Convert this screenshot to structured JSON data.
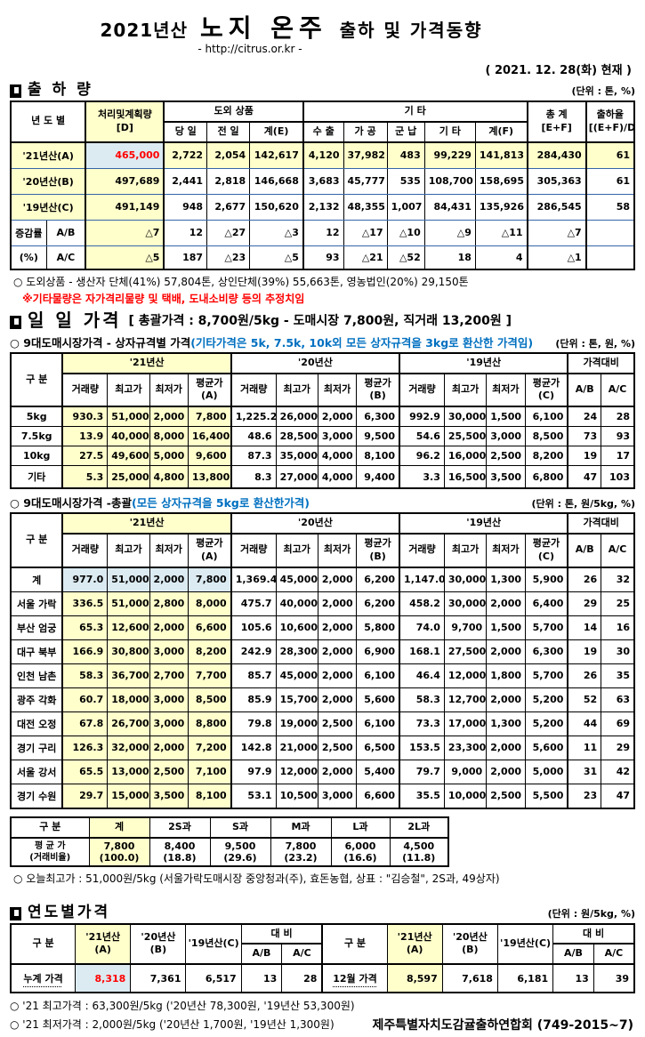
{
  "header": {
    "year": "2021년산",
    "product": "노지 온주",
    "subtitle": "출하 및 가격동향",
    "url": "- http://citrus.or.kr -",
    "date": "( 2021. 12. 28(화) 현재 )"
  },
  "shipment": {
    "title": "출 하 량",
    "unit": "(단위 : 톤, %)",
    "head": {
      "year_col": "년 도 별",
      "plan": "처리및계획량\n[D]",
      "island_goods": "도외 상품",
      "etc": "기      타",
      "total": "총  계\n[E+F]",
      "rate": "출하율\n[(E+F)/D]",
      "sub": [
        "당 일",
        "전 일",
        "계(E)",
        "수 출",
        "가 공",
        "군 납",
        "기 타",
        "계(F)"
      ]
    },
    "rows": [
      [
        {
          "t": "'21년산(A)",
          "c": "lab y",
          "cs": 2
        },
        {
          "t": "465,000",
          "c": "b r"
        },
        {
          "t": "2,722",
          "c": "y"
        },
        {
          "t": "2,054",
          "c": "y"
        },
        {
          "t": "142,617",
          "c": "y"
        },
        {
          "t": "4,120",
          "c": "y"
        },
        {
          "t": "37,982",
          "c": "y"
        },
        {
          "t": "483",
          "c": "y"
        },
        {
          "t": "99,229",
          "c": "y"
        },
        {
          "t": "141,813",
          "c": "y"
        },
        {
          "t": "284,430",
          "c": "y"
        },
        {
          "t": "61",
          "c": "y"
        }
      ],
      [
        {
          "t": "'20년산(B)",
          "c": "lab y",
          "cs": 2
        },
        {
          "t": "497,689",
          "c": "y"
        },
        "2,441",
        "2,818",
        "146,668",
        "3,683",
        "45,777",
        "535",
        "108,700",
        "158,695",
        "305,363",
        "61"
      ],
      [
        {
          "t": "'19년산(C)",
          "c": "lab y",
          "cs": 2
        },
        {
          "t": "491,149",
          "c": "y"
        },
        "948",
        "2,677",
        "150,620",
        "2,132",
        "48,355",
        "1,007",
        "84,431",
        "135,926",
        "286,545",
        "58"
      ],
      [
        {
          "t": "증감률",
          "c": "lab"
        },
        {
          "t": "A/B",
          "c": "lab"
        },
        {
          "t": "△7",
          "c": "y"
        },
        "12",
        "△27",
        "△3",
        "12",
        "△17",
        "△10",
        "△9",
        "△11",
        "△7",
        ""
      ],
      [
        {
          "t": "(%)",
          "c": "lab"
        },
        {
          "t": "A/C",
          "c": "lab"
        },
        {
          "t": "△5",
          "c": "y"
        },
        "187",
        "△23",
        "△5",
        "93",
        "△21",
        "△52",
        "18",
        "4",
        "△1",
        ""
      ]
    ],
    "note": "○ 도외상품 - 생산자 단체(41%) 57,804톤,  상인단체(39%) 55,663톤,  영농법인(20%) 29,150톤",
    "note_red": "※기타물량은 자가격리물량 및 택배, 도내소비량 등의 추정치임"
  },
  "daily": {
    "title": "일 일 가격",
    "summary": "[ 총괄가격 :  8,700원/5kg - 도매시장 7,800원,  직거래 13,200원 ]",
    "market_head": {
      "gubun": "구   분",
      "y21": "'21년산",
      "y20": "'20년산",
      "y19": "'19년산",
      "cmp": "가격대비",
      "sub21": [
        "거래량",
        "최고가",
        "최저가",
        "평균가(A)"
      ],
      "sub20": [
        "거래량",
        "최고가",
        "최저가",
        "평균가(B)"
      ],
      "sub19": [
        "거래량",
        "최고가",
        "최저가",
        "평균가(C)"
      ],
      "cmp_sub": [
        "A/B",
        "A/C"
      ]
    },
    "by_box": {
      "label": "○ 9대도매시장가격 - 상자규격별 가격",
      "label_note": "(기타가격은 5k, 7.5k, 10k외 모든 상자규격을 3kg로 환산한 가격임)",
      "unit": "(단위 : 톤, 원, %)",
      "rows": [
        [
          {
            "t": "5kg",
            "c": "lab"
          },
          {
            "t": "930.3",
            "c": "y"
          },
          {
            "t": "51,000",
            "c": "y"
          },
          {
            "t": "2,000",
            "c": "y"
          },
          {
            "t": "7,800",
            "c": "y"
          },
          "1,225.2",
          "26,000",
          "2,000",
          "6,300",
          "992.9",
          "30,000",
          "1,500",
          "6,100",
          "24",
          "28"
        ],
        [
          {
            "t": "7.5kg",
            "c": "lab"
          },
          {
            "t": "13.9",
            "c": "y"
          },
          {
            "t": "40,000",
            "c": "y"
          },
          {
            "t": "8,000",
            "c": "y"
          },
          {
            "t": "16,400",
            "c": "y"
          },
          "48.6",
          "28,500",
          "3,000",
          "9,500",
          "54.6",
          "25,500",
          "3,000",
          "8,500",
          "73",
          "93"
        ],
        [
          {
            "t": "10kg",
            "c": "lab"
          },
          {
            "t": "27.5",
            "c": "y"
          },
          {
            "t": "49,600",
            "c": "y"
          },
          {
            "t": "5,000",
            "c": "y"
          },
          {
            "t": "9,600",
            "c": "y"
          },
          "87.3",
          "35,000",
          "4,000",
          "8,100",
          "96.2",
          "16,000",
          "2,500",
          "8,200",
          "19",
          "17"
        ],
        [
          {
            "t": "기타",
            "c": "lab"
          },
          {
            "t": "5.3",
            "c": "y"
          },
          {
            "t": "25,000",
            "c": "y"
          },
          {
            "t": "4,800",
            "c": "y"
          },
          {
            "t": "13,800",
            "c": "y"
          },
          "8.3",
          "27,000",
          "4,000",
          "9,400",
          "3.3",
          "16,500",
          "3,500",
          "6,800",
          "47",
          "103"
        ]
      ]
    },
    "overall": {
      "label": "○ 9대도매시장가격 -총괄",
      "label_note": "(모든 상자규격을 5kg로 환산한가격)",
      "unit": "(단위 : 톤, 원/5kg, %)",
      "rows": [
        [
          {
            "t": "계",
            "c": "lab"
          },
          {
            "t": "977.0",
            "c": "b"
          },
          {
            "t": "51,000",
            "c": "b"
          },
          {
            "t": "2,000",
            "c": "b"
          },
          {
            "t": "7,800",
            "c": "b"
          },
          "1,369.4",
          "45,000",
          "2,000",
          "6,200",
          "1,147.0",
          "30,000",
          "1,300",
          "5,900",
          "26",
          "32"
        ],
        [
          {
            "t": "서울 가락",
            "c": "lab"
          },
          {
            "t": "336.5",
            "c": "y"
          },
          {
            "t": "51,000",
            "c": "y"
          },
          {
            "t": "2,800",
            "c": "y"
          },
          {
            "t": "8,000",
            "c": "y"
          },
          "475.7",
          "40,000",
          "2,000",
          "6,200",
          "458.2",
          "30,000",
          "2,000",
          "6,400",
          "29",
          "25"
        ],
        [
          {
            "t": "부산 엄궁",
            "c": "lab"
          },
          {
            "t": "65.3",
            "c": "y"
          },
          {
            "t": "12,600",
            "c": "y"
          },
          {
            "t": "2,000",
            "c": "y"
          },
          {
            "t": "6,600",
            "c": "y"
          },
          "105.6",
          "10,600",
          "2,000",
          "5,800",
          "74.0",
          "9,700",
          "1,500",
          "5,700",
          "14",
          "16"
        ],
        [
          {
            "t": "대구 북부",
            "c": "lab"
          },
          {
            "t": "166.9",
            "c": "y"
          },
          {
            "t": "30,800",
            "c": "y"
          },
          {
            "t": "3,000",
            "c": "y"
          },
          {
            "t": "8,200",
            "c": "y"
          },
          "242.9",
          "28,300",
          "2,000",
          "6,900",
          "168.1",
          "27,500",
          "2,000",
          "6,300",
          "19",
          "30"
        ],
        [
          {
            "t": "인천 남촌",
            "c": "lab"
          },
          {
            "t": "58.3",
            "c": "y"
          },
          {
            "t": "36,700",
            "c": "y"
          },
          {
            "t": "2,700",
            "c": "y"
          },
          {
            "t": "7,700",
            "c": "y"
          },
          "85.7",
          "45,000",
          "2,000",
          "6,100",
          "46.4",
          "12,000",
          "1,800",
          "5,700",
          "26",
          "35"
        ],
        [
          {
            "t": "광주 각화",
            "c": "lab"
          },
          {
            "t": "60.7",
            "c": "y"
          },
          {
            "t": "18,000",
            "c": "y"
          },
          {
            "t": "3,000",
            "c": "y"
          },
          {
            "t": "8,500",
            "c": "y"
          },
          "85.9",
          "15,700",
          "2,000",
          "5,600",
          "58.3",
          "12,700",
          "2,000",
          "5,200",
          "52",
          "63"
        ],
        [
          {
            "t": "대전 오정",
            "c": "lab"
          },
          {
            "t": "67.8",
            "c": "y"
          },
          {
            "t": "26,700",
            "c": "y"
          },
          {
            "t": "3,000",
            "c": "y"
          },
          {
            "t": "8,800",
            "c": "y"
          },
          "79.8",
          "19,000",
          "2,500",
          "6,100",
          "73.3",
          "17,000",
          "1,300",
          "5,200",
          "44",
          "69"
        ],
        [
          {
            "t": "경기 구리",
            "c": "lab"
          },
          {
            "t": "126.3",
            "c": "y"
          },
          {
            "t": "32,000",
            "c": "y"
          },
          {
            "t": "2,000",
            "c": "y"
          },
          {
            "t": "7,200",
            "c": "y"
          },
          "142.8",
          "21,000",
          "2,500",
          "6,500",
          "153.5",
          "23,300",
          "2,000",
          "5,600",
          "11",
          "29"
        ],
        [
          {
            "t": "서울 강서",
            "c": "lab"
          },
          {
            "t": "65.5",
            "c": "y"
          },
          {
            "t": "13,000",
            "c": "y"
          },
          {
            "t": "2,500",
            "c": "y"
          },
          {
            "t": "7,100",
            "c": "y"
          },
          "97.9",
          "12,000",
          "2,000",
          "5,400",
          "79.7",
          "9,000",
          "2,000",
          "5,000",
          "31",
          "42"
        ],
        [
          {
            "t": "경기 수원",
            "c": "lab"
          },
          {
            "t": "29.7",
            "c": "y"
          },
          {
            "t": "15,000",
            "c": "y"
          },
          {
            "t": "3,500",
            "c": "y"
          },
          {
            "t": "8,100",
            "c": "y"
          },
          "53.1",
          "10,500",
          "3,000",
          "6,600",
          "35.5",
          "10,000",
          "2,500",
          "5,500",
          "23",
          "47"
        ]
      ]
    },
    "by_size": {
      "head": [
        "구   분",
        "계",
        "2S과",
        "S과",
        "M과",
        "L과",
        "2L과"
      ],
      "rows": [
        [
          {
            "t": "평 균 가\n(거래비율)",
            "c": "lab sm"
          },
          {
            "t": "7,800\n(100.0)",
            "c": "y"
          },
          "8,400\n(18.8)",
          "9,500\n(29.6)",
          "7,800\n(23.2)",
          "6,000\n(16.6)",
          "4,500\n(11.8)"
        ]
      ]
    },
    "today_high": "○ 오늘최고가 :  51,000원/5kg (서울가락도매시장  중앙청과(주),  효돈농협,  상표 : \"김승철\",  2S과,  49상자)"
  },
  "yearly": {
    "title": "연도별가격",
    "unit": "(단위 : 원/5kg, %)",
    "head": {
      "gubun": "구    분",
      "y21": "'21년산(A)",
      "y20": "'20년산(B)",
      "y19": "'19년산(C)",
      "cmp": "대      비",
      "ab": "A/B",
      "ac": "A/C"
    },
    "rows": [
      [
        {
          "t": "누계 가격",
          "c": "lab dot"
        },
        {
          "t": "8,318",
          "c": "b r"
        },
        "7,361",
        "6,517",
        "13",
        "28",
        {
          "t": "12월 가격",
          "c": "lab dot"
        },
        {
          "t": "8,597",
          "c": "y"
        },
        "7,618",
        "6,181",
        "13",
        "39"
      ]
    ],
    "notes": [
      "○ '21 최고가격 : 63,300원/5kg ('20년산 78,300원, '19년산 53,300원)",
      "○ '21 최저가격 :  2,000원/5kg ('20년산 1,700원, '19년산  1,300원)"
    ],
    "org": "제주특별자치도감귤출하연합회 (749-2015~7)"
  }
}
